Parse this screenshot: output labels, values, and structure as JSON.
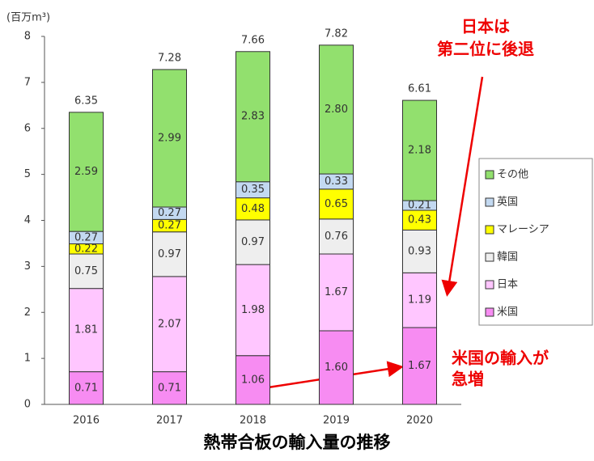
{
  "chart_data": {
    "type": "stacked_bar",
    "title": "熱帯合板の輸入量の推移",
    "y_unit_label": "(百万m³)",
    "categories": [
      "2016",
      "2017",
      "2018",
      "2019",
      "2020"
    ],
    "series": [
      {
        "name": "米国",
        "color": "#f78cf2",
        "values": [
          0.71,
          0.71,
          1.06,
          1.6,
          1.67
        ],
        "value_labels": [
          "0.71",
          "0.71",
          "1.06",
          "1.60",
          "1.67"
        ]
      },
      {
        "name": "日本",
        "color": "#ffc6ff",
        "values": [
          1.81,
          2.07,
          1.98,
          1.67,
          1.19
        ],
        "value_labels": [
          "1.81",
          "2.07",
          "1.98",
          "1.67",
          "1.19"
        ]
      },
      {
        "name": "韓国",
        "color": "#eeeeee",
        "values": [
          0.75,
          0.97,
          0.97,
          0.76,
          0.93
        ],
        "value_labels": [
          "0.75",
          "0.97",
          "0.97",
          "0.76",
          "0.93"
        ]
      },
      {
        "name": "マレーシア",
        "color": "#ffff00",
        "values": [
          0.22,
          0.27,
          0.48,
          0.65,
          0.43
        ],
        "value_labels": [
          "0.22",
          "0.27",
          "0.48",
          "0.65",
          "0.43"
        ]
      },
      {
        "name": "英国",
        "color": "#c3d9f1",
        "values": [
          0.27,
          0.27,
          0.35,
          0.33,
          0.21
        ],
        "value_labels": [
          "0.27",
          "0.27",
          "0.35",
          "0.33",
          "0.21"
        ]
      },
      {
        "name": "その他",
        "color": "#92e06e",
        "values": [
          2.59,
          2.99,
          2.83,
          2.8,
          2.18
        ],
        "value_labels": [
          "2.59",
          "2.99",
          "2.83",
          "2.80",
          "2.18"
        ]
      }
    ],
    "totals": [
      6.35,
      7.28,
      7.66,
      7.82,
      6.61
    ],
    "ylim": [
      0,
      8
    ],
    "yticks": [
      0,
      1,
      2,
      3,
      4,
      5,
      6,
      7,
      8
    ],
    "annotations": [
      [
        "日本は",
        "第二位に後退"
      ],
      [
        "米国の輸入が",
        "急増"
      ]
    ]
  }
}
